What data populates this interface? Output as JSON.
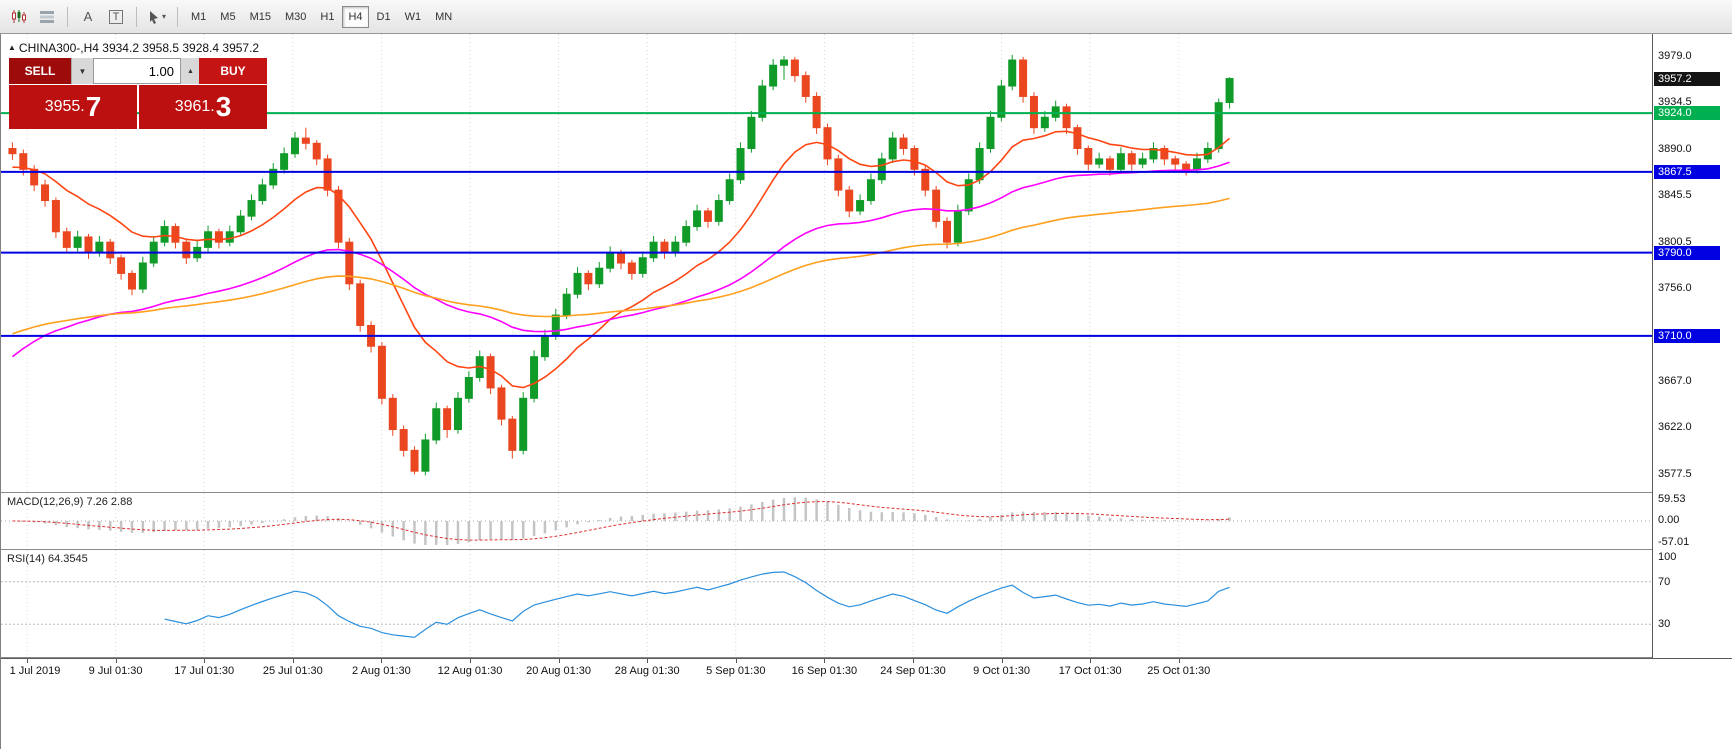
{
  "toolbar": {
    "icons": [
      {
        "name": "chart-window-icon"
      },
      {
        "name": "chart-list-icon"
      },
      {
        "name": "text-tool-icon",
        "glyph": "A"
      },
      {
        "name": "textbox-tool-icon",
        "glyph": "T"
      },
      {
        "name": "cursor-tool-icon",
        "dropdown": "▾"
      }
    ],
    "timeframes": [
      "M1",
      "M5",
      "M15",
      "M30",
      "H1",
      "H4",
      "D1",
      "W1",
      "MN"
    ],
    "active_timeframe": "H4"
  },
  "symbol_line": {
    "marker": "▲",
    "text": "CHINA300-,H4 3934.2 3958.5 3928.4 3957.2"
  },
  "trade_panel": {
    "sell_label": "SELL",
    "buy_label": "BUY",
    "volume": "1.00",
    "bid": "3955.7",
    "ask": "3961.3",
    "dropdown_glyph": "▼",
    "spin_glyph": "▲",
    "sell_color": "#9e0b0b",
    "buy_color": "#c51414",
    "price_color": "#bc1010"
  },
  "chart_data": {
    "type": "candlestick",
    "title": "CHINA300-,H4",
    "last_ohlc": {
      "open": 3934.2,
      "high": 3958.5,
      "low": 3928.4,
      "close": 3957.2
    },
    "y_range": [
      3560,
      4000
    ],
    "y_ticks": [
      "3979.0",
      "3934.5",
      "3890.0",
      "3845.5",
      "3800.5",
      "3756.0",
      "3711.5",
      "3667.0",
      "3622.0",
      "3577.5"
    ],
    "x_labels": [
      "1 Jul 2019",
      "9 Jul 01:30",
      "17 Jul 01:30",
      "25 Jul 01:30",
      "2 Aug 01:30",
      "12 Aug 01:30",
      "20 Aug 01:30",
      "28 Aug 01:30",
      "5 Sep 01:30",
      "16 Sep 01:30",
      "24 Sep 01:30",
      "9 Oct 01:30",
      "17 Oct 01:30",
      "25 Oct 01:30"
    ],
    "levels": [
      {
        "label": "3924.0",
        "price": 3924.0,
        "color": "#00b050"
      },
      {
        "label": "3867.5",
        "price": 3867.5,
        "color": "#0000e0"
      },
      {
        "label": "3790.0",
        "price": 3790.0,
        "color": "#0000e0"
      },
      {
        "label": "3710.0",
        "price": 3710.0,
        "color": "#0000e0"
      }
    ],
    "last_price": {
      "label": "3957.2",
      "price": 3957.2,
      "color": "#141414"
    },
    "up_color": "#109b28",
    "down_color": "#ea4620",
    "ma_colors": {
      "fast": "#ff4612",
      "medium": "#ff00ff",
      "slow": "#ffa01e"
    },
    "candles": [
      [
        3890,
        3896,
        3879,
        3885
      ],
      [
        3885,
        3889,
        3864,
        3870
      ],
      [
        3870,
        3874,
        3849,
        3855
      ],
      [
        3855,
        3860,
        3834,
        3840
      ],
      [
        3840,
        3843,
        3804,
        3810
      ],
      [
        3810,
        3814,
        3789,
        3795
      ],
      [
        3795,
        3811,
        3791,
        3805
      ],
      [
        3805,
        3808,
        3784,
        3790
      ],
      [
        3790,
        3806,
        3786,
        3800
      ],
      [
        3800,
        3803,
        3779,
        3785
      ],
      [
        3785,
        3788,
        3764,
        3770
      ],
      [
        3770,
        3773,
        3749,
        3755
      ],
      [
        3755,
        3786,
        3751,
        3780
      ],
      [
        3780,
        3806,
        3776,
        3800
      ],
      [
        3800,
        3821,
        3796,
        3815
      ],
      [
        3815,
        3818,
        3794,
        3800
      ],
      [
        3800,
        3803,
        3779,
        3785
      ],
      [
        3785,
        3801,
        3781,
        3795
      ],
      [
        3795,
        3816,
        3791,
        3810
      ],
      [
        3810,
        3813,
        3794,
        3800
      ],
      [
        3800,
        3816,
        3796,
        3810
      ],
      [
        3810,
        3831,
        3806,
        3825
      ],
      [
        3825,
        3846,
        3821,
        3840
      ],
      [
        3840,
        3861,
        3836,
        3855
      ],
      [
        3855,
        3876,
        3851,
        3870
      ],
      [
        3870,
        3891,
        3866,
        3885
      ],
      [
        3885,
        3906,
        3881,
        3900
      ],
      [
        3900,
        3910,
        3889,
        3895
      ],
      [
        3895,
        3898,
        3874,
        3880
      ],
      [
        3880,
        3884,
        3844,
        3850
      ],
      [
        3850,
        3854,
        3794,
        3800
      ],
      [
        3800,
        3804,
        3754,
        3760
      ],
      [
        3760,
        3764,
        3714,
        3720
      ],
      [
        3720,
        3724,
        3694,
        3700
      ],
      [
        3700,
        3704,
        3644,
        3650
      ],
      [
        3650,
        3654,
        3614,
        3620
      ],
      [
        3620,
        3624,
        3594,
        3600
      ],
      [
        3600,
        3604,
        3577,
        3580
      ],
      [
        3580,
        3616,
        3576,
        3610
      ],
      [
        3610,
        3646,
        3606,
        3640
      ],
      [
        3640,
        3643,
        3612,
        3620
      ],
      [
        3620,
        3656,
        3616,
        3650
      ],
      [
        3650,
        3676,
        3646,
        3670
      ],
      [
        3670,
        3696,
        3666,
        3690
      ],
      [
        3690,
        3693,
        3654,
        3660
      ],
      [
        3660,
        3663,
        3624,
        3630
      ],
      [
        3630,
        3633,
        3592,
        3600
      ],
      [
        3600,
        3656,
        3596,
        3650
      ],
      [
        3650,
        3696,
        3646,
        3690
      ],
      [
        3690,
        3716,
        3686,
        3710
      ],
      [
        3710,
        3736,
        3706,
        3730
      ],
      [
        3730,
        3756,
        3726,
        3750
      ],
      [
        3750,
        3776,
        3746,
        3770
      ],
      [
        3770,
        3773,
        3754,
        3760
      ],
      [
        3760,
        3781,
        3756,
        3775
      ],
      [
        3775,
        3796,
        3771,
        3790
      ],
      [
        3790,
        3793,
        3774,
        3780
      ],
      [
        3780,
        3783,
        3764,
        3770
      ],
      [
        3770,
        3791,
        3766,
        3785
      ],
      [
        3785,
        3806,
        3781,
        3800
      ],
      [
        3800,
        3803,
        3784,
        3790
      ],
      [
        3790,
        3806,
        3786,
        3800
      ],
      [
        3800,
        3821,
        3796,
        3815
      ],
      [
        3815,
        3836,
        3811,
        3830
      ],
      [
        3830,
        3833,
        3814,
        3820
      ],
      [
        3820,
        3846,
        3816,
        3840
      ],
      [
        3840,
        3866,
        3836,
        3860
      ],
      [
        3860,
        3896,
        3856,
        3890
      ],
      [
        3890,
        3926,
        3886,
        3920
      ],
      [
        3920,
        3956,
        3916,
        3950
      ],
      [
        3950,
        3976,
        3946,
        3970
      ],
      [
        3970,
        3979,
        3956,
        3975
      ],
      [
        3975,
        3978,
        3954,
        3960
      ],
      [
        3960,
        3964,
        3934,
        3940
      ],
      [
        3940,
        3944,
        3904,
        3910
      ],
      [
        3910,
        3914,
        3874,
        3880
      ],
      [
        3880,
        3884,
        3844,
        3850
      ],
      [
        3850,
        3854,
        3824,
        3830
      ],
      [
        3830,
        3846,
        3826,
        3840
      ],
      [
        3840,
        3866,
        3836,
        3860
      ],
      [
        3860,
        3886,
        3856,
        3880
      ],
      [
        3880,
        3906,
        3876,
        3900
      ],
      [
        3900,
        3904,
        3884,
        3890
      ],
      [
        3890,
        3893,
        3864,
        3870
      ],
      [
        3870,
        3874,
        3844,
        3850
      ],
      [
        3850,
        3854,
        3814,
        3820
      ],
      [
        3820,
        3824,
        3794,
        3800
      ],
      [
        3800,
        3836,
        3796,
        3830
      ],
      [
        3830,
        3866,
        3826,
        3860
      ],
      [
        3860,
        3896,
        3856,
        3890
      ],
      [
        3890,
        3926,
        3886,
        3920
      ],
      [
        3920,
        3956,
        3916,
        3950
      ],
      [
        3950,
        3980,
        3946,
        3975
      ],
      [
        3975,
        3978,
        3934,
        3940
      ],
      [
        3940,
        3944,
        3904,
        3910
      ],
      [
        3910,
        3926,
        3906,
        3920
      ],
      [
        3920,
        3936,
        3916,
        3930
      ],
      [
        3930,
        3933,
        3904,
        3910
      ],
      [
        3910,
        3913,
        3884,
        3890
      ],
      [
        3890,
        3893,
        3869,
        3875
      ],
      [
        3875,
        3886,
        3871,
        3880
      ],
      [
        3880,
        3883,
        3864,
        3870
      ],
      [
        3870,
        3891,
        3866,
        3885
      ],
      [
        3885,
        3888,
        3869,
        3875
      ],
      [
        3875,
        3886,
        3871,
        3880
      ],
      [
        3880,
        3896,
        3876,
        3890
      ],
      [
        3890,
        3893,
        3874,
        3880
      ],
      [
        3880,
        3883,
        3869,
        3875
      ],
      [
        3875,
        3878,
        3864,
        3870
      ],
      [
        3870,
        3886,
        3866,
        3880
      ],
      [
        3880,
        3896,
        3876,
        3890
      ],
      [
        3890,
        3938,
        3886,
        3934
      ],
      [
        3934.2,
        3958.5,
        3928.4,
        3957.2
      ]
    ],
    "macd": {
      "label": "MACD(12,26,9) 7.26 2.88",
      "params": [
        12,
        26,
        9
      ],
      "y_ticks": [
        "59.53",
        "0.00",
        "-57.01"
      ],
      "range": [
        -60,
        60
      ],
      "hist_color": "#c4c4c4",
      "signal_color": "#e03333"
    },
    "rsi": {
      "label": "RSI(14) 64.3545",
      "period": 14,
      "value": 64.3545,
      "y_ticks": [
        "100",
        "70",
        "30"
      ],
      "levels": [
        70,
        30
      ],
      "color": "#2a8fdd"
    }
  }
}
